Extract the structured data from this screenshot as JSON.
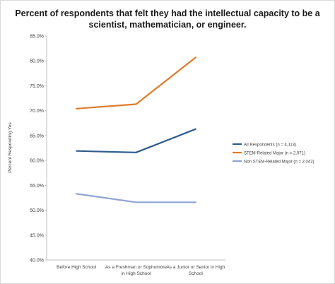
{
  "chart_data": {
    "type": "line",
    "title": "Percent of respondents that felt they had the intellectual capacity to be a scientist, mathematician, or engineer.",
    "ylabel": "Percent Responding Yes",
    "xlabel": "",
    "ylim": [
      40,
      85
    ],
    "yticks": [
      "40.0%",
      "45.0%",
      "50.0%",
      "55.0%",
      "60.0%",
      "65.0%",
      "70.0%",
      "75.0%",
      "80.0%",
      "85.0%"
    ],
    "categories": [
      [
        "Before High School"
      ],
      [
        "As a Freshman or Sophomore",
        "in High School"
      ],
      [
        "As a Junior or Senior in High",
        "School"
      ]
    ],
    "grid": false,
    "legend_position": "right",
    "series": [
      {
        "name": "All Respondents (n = 4,113)",
        "color": "#2e5c8e",
        "values": [
          61.9,
          61.6,
          66.3
        ]
      },
      {
        "name": "STEM-Related Major (n = 2,071)",
        "color": "#e07b2b",
        "values": [
          70.4,
          71.3,
          80.7
        ]
      },
      {
        "name": "Non STEM-Related Major (n = 2,042)",
        "color": "#8fa3d6",
        "values": [
          53.3,
          51.6,
          51.6
        ]
      }
    ]
  }
}
